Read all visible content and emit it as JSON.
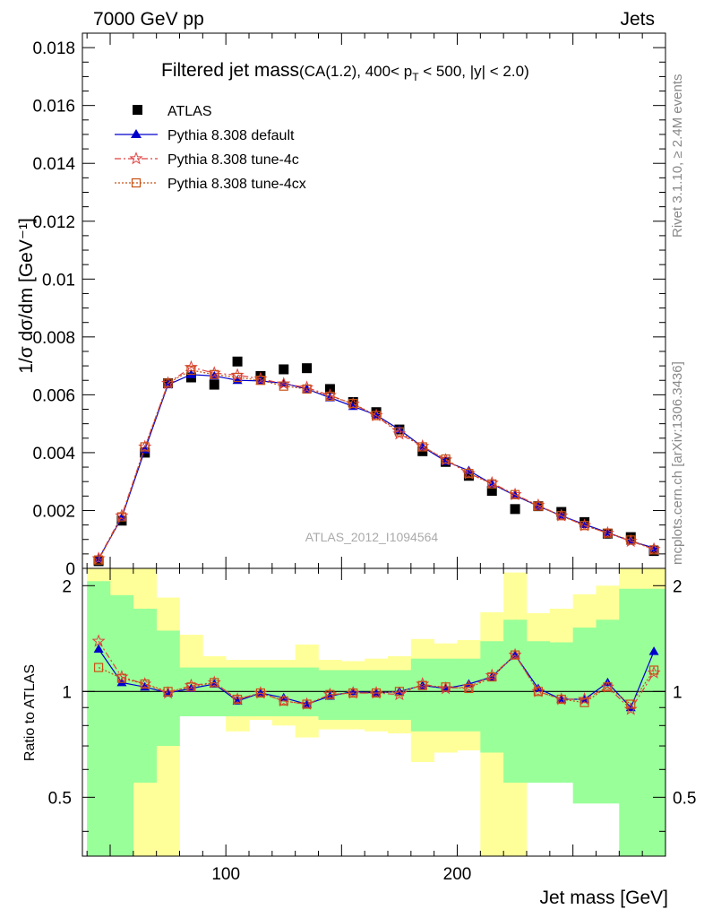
{
  "header": {
    "left": "7000 GeV pp",
    "right": "Jets"
  },
  "side_labels": {
    "rivet": "Rivet 3.1.10, ≥ 2.4M events",
    "mcplots": "mcplots.cern.ch [arXiv:1306.3436]"
  },
  "watermark": "ATLAS_2012_I1094564",
  "colors": {
    "atlas": "#000000",
    "default": "#0000cc",
    "tune4c": "#e04040",
    "tune4cx": "#c85014",
    "band_green": "#99ff99",
    "band_yellow": "#ffff99"
  },
  "chart_data": [
    {
      "type": "scatter",
      "title_main": "Filtered jet mass",
      "title_sub_pre": "(CA(1.2), 400< p",
      "title_sub_sub": "T",
      "title_sub_post": " < 500, |y| < 2.0)",
      "ylabel": "1/σ dσ/dm [GeV⁻¹]",
      "xlim": [
        38,
        290
      ],
      "ylim": [
        0,
        0.0185
      ],
      "yticks": [
        0,
        0.002,
        0.004,
        0.006,
        0.008,
        0.01,
        0.012,
        0.014,
        0.016,
        0.018
      ],
      "ytick_labels": [
        "0",
        "0.002",
        "0.004",
        "0.006",
        "0.008",
        "0.01",
        "0.012",
        "0.014",
        "0.016",
        "0.018"
      ],
      "x": [
        45,
        55,
        65,
        75,
        85,
        95,
        105,
        115,
        125,
        135,
        145,
        155,
        165,
        175,
        185,
        195,
        205,
        215,
        225,
        235,
        245,
        255,
        265,
        275,
        285
      ],
      "series": [
        {
          "name": "ATLAS",
          "marker": "square",
          "values": [
            0.00025,
            0.00165,
            0.004,
            0.0064,
            0.0066,
            0.00635,
            0.00715,
            0.00665,
            0.00688,
            0.00692,
            0.0062,
            0.00575,
            0.0054,
            0.0048,
            0.00405,
            0.00368,
            0.0032,
            0.00268,
            0.00205,
            0.00215,
            0.00195,
            0.0016,
            0.0012,
            0.00108,
            0.0006
          ]
        },
        {
          "name": "Pythia 8.308 default",
          "marker": "triangle",
          "values": [
            0.00033,
            0.00175,
            0.0041,
            0.00635,
            0.0067,
            0.00665,
            0.0065,
            0.00648,
            0.0064,
            0.0062,
            0.0059,
            0.0056,
            0.0053,
            0.0048,
            0.0042,
            0.0037,
            0.00338,
            0.00292,
            0.00252,
            0.00215,
            0.00182,
            0.00152,
            0.00124,
            0.00094,
            0.00071
          ]
        },
        {
          "name": "Pythia 8.308 tune-4c",
          "marker": "star",
          "values": [
            0.00034,
            0.00182,
            0.0042,
            0.0064,
            0.00695,
            0.00675,
            0.00668,
            0.00655,
            0.00638,
            0.00625,
            0.00598,
            0.00568,
            0.00528,
            0.00465,
            0.00422,
            0.00375,
            0.00328,
            0.00295,
            0.00255,
            0.00218,
            0.00182,
            0.00148,
            0.00122,
            0.00094,
            0.00066
          ]
        },
        {
          "name": "Pythia 8.308 tune-4cx",
          "marker": "open-square",
          "values": [
            0.00029,
            0.00178,
            0.0042,
            0.0064,
            0.00685,
            0.0067,
            0.0066,
            0.0065,
            0.0063,
            0.0062,
            0.00595,
            0.0057,
            0.00528,
            0.00472,
            0.0042,
            0.00378,
            0.00328,
            0.00292,
            0.00255,
            0.00215,
            0.00182,
            0.00148,
            0.00122,
            0.00098,
            0.00064
          ]
        }
      ]
    },
    {
      "type": "scatter",
      "ylabel": "Ratio to ATLAS",
      "xlabel": "Jet mass [GeV]",
      "xlim": [
        38,
        290
      ],
      "ylim": [
        0.34,
        2.24
      ],
      "yticks": [
        0.5,
        1,
        2
      ],
      "ytick_labels": [
        "0.5",
        "1",
        "2"
      ],
      "xticks": [
        100,
        200
      ],
      "xtick_labels": [
        "100",
        "200"
      ],
      "reference": 1,
      "bin_edges": [
        40,
        50,
        60,
        70,
        80,
        90,
        100,
        110,
        120,
        130,
        140,
        150,
        160,
        170,
        180,
        190,
        200,
        210,
        220,
        230,
        240,
        250,
        260,
        270,
        280,
        290
      ],
      "band_green": {
        "low": [
          0.34,
          0.34,
          0.55,
          0.7,
          0.85,
          0.85,
          0.85,
          0.85,
          0.85,
          0.85,
          0.83,
          0.83,
          0.83,
          0.83,
          0.77,
          0.77,
          0.77,
          0.67,
          0.55,
          0.55,
          0.55,
          0.48,
          0.48,
          0.34,
          0.34
        ],
        "high": [
          2.06,
          1.88,
          1.72,
          1.49,
          1.17,
          1.17,
          1.17,
          1.17,
          1.17,
          1.17,
          1.15,
          1.15,
          1.15,
          1.15,
          1.24,
          1.24,
          1.24,
          1.39,
          1.6,
          1.39,
          1.38,
          1.52,
          1.6,
          1.96,
          1.96
        ]
      },
      "band_yellow": {
        "low": [
          0.34,
          0.34,
          0.34,
          0.34,
          0.93,
          0.93,
          0.77,
          0.83,
          0.8,
          0.74,
          0.78,
          0.78,
          0.77,
          0.76,
          0.63,
          0.67,
          0.68,
          0.34,
          0.34,
          0.65,
          0.72,
          0.68,
          0.62,
          0.34,
          0.43
        ],
        "high": [
          2.24,
          2.24,
          2.24,
          1.85,
          1.45,
          1.26,
          1.23,
          1.23,
          1.23,
          1.36,
          1.23,
          1.22,
          1.24,
          1.26,
          1.41,
          1.37,
          1.4,
          1.68,
          2.18,
          1.67,
          1.72,
          1.89,
          2.0,
          2.24,
          2.24
        ]
      },
      "x": [
        45,
        55,
        65,
        75,
        85,
        95,
        105,
        115,
        125,
        135,
        145,
        155,
        165,
        175,
        185,
        195,
        205,
        215,
        225,
        235,
        245,
        255,
        265,
        275,
        285
      ],
      "series": [
        {
          "name": "Pythia 8.308 default",
          "marker": "triangle",
          "values": [
            1.32,
            1.06,
            1.03,
            0.99,
            1.02,
            1.05,
            0.94,
            0.99,
            0.96,
            0.92,
            0.97,
            1.0,
            0.99,
            1.0,
            1.04,
            1.02,
            1.05,
            1.1,
            1.27,
            1.02,
            0.95,
            0.95,
            1.06,
            0.9,
            1.3
          ]
        },
        {
          "name": "Pythia 8.308 tune-4c",
          "marker": "star",
          "values": [
            1.39,
            1.1,
            1.05,
            0.99,
            1.04,
            1.06,
            0.95,
            0.99,
            0.94,
            0.92,
            0.98,
            0.99,
            0.99,
            0.98,
            1.05,
            1.02,
            1.03,
            1.11,
            1.27,
            1.0,
            0.95,
            0.95,
            1.03,
            0.89,
            1.13
          ]
        },
        {
          "name": "Pythia 8.308 tune-4cx",
          "marker": "open-square",
          "values": [
            1.17,
            1.09,
            1.05,
            1.0,
            1.03,
            1.06,
            0.95,
            0.99,
            0.94,
            0.92,
            0.98,
            0.99,
            0.99,
            1.0,
            1.04,
            1.03,
            1.02,
            1.1,
            1.27,
            1.0,
            0.95,
            0.93,
            1.03,
            0.92,
            1.15
          ]
        }
      ]
    }
  ]
}
